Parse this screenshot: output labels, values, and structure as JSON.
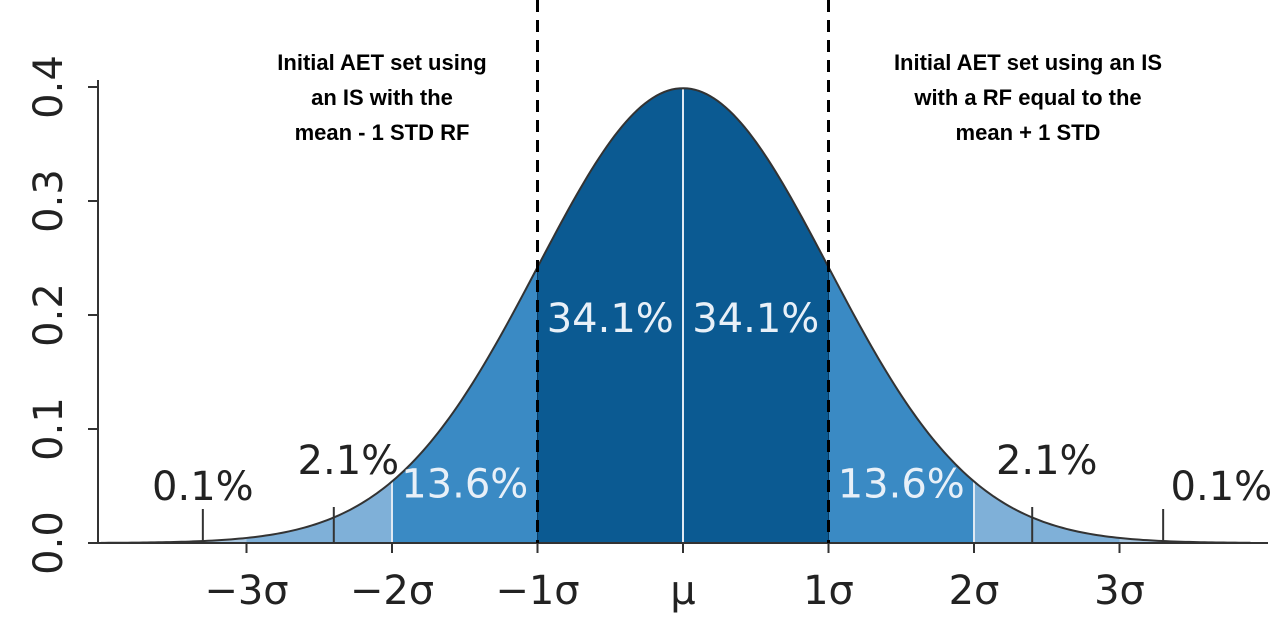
{
  "chart_data": {
    "type": "area",
    "title": "",
    "xlabel": "",
    "ylabel": "",
    "xlim": [
      -4.0,
      3.9
    ],
    "ylim": [
      0.0,
      0.4
    ],
    "grid": false,
    "x_ticks": [
      {
        "value": -3,
        "label": "−3σ"
      },
      {
        "value": -2,
        "label": "−2σ"
      },
      {
        "value": -1,
        "label": "−1σ"
      },
      {
        "value": 0,
        "label": "μ"
      },
      {
        "value": 1,
        "label": "1σ"
      },
      {
        "value": 2,
        "label": "2σ"
      },
      {
        "value": 3,
        "label": "3σ"
      }
    ],
    "y_ticks": [
      {
        "value": 0.0,
        "label": "0.0"
      },
      {
        "value": 0.1,
        "label": "0.1"
      },
      {
        "value": 0.2,
        "label": "0.2"
      },
      {
        "value": 0.3,
        "label": "0.3"
      },
      {
        "value": 0.4,
        "label": "0.4"
      }
    ],
    "curve": "normal_pdf",
    "bands": [
      {
        "from": -4.0,
        "to": -3,
        "percent": "0.1%",
        "color": "#a9c8e2"
      },
      {
        "from": -3,
        "to": -2,
        "percent": "2.1%",
        "color": "#7fb0d8"
      },
      {
        "from": -2,
        "to": -1,
        "percent": "13.6%",
        "color": "#3a8ac4"
      },
      {
        "from": -1,
        "to": 0,
        "percent": "34.1%",
        "color": "#0b5a92"
      },
      {
        "from": 0,
        "to": 1,
        "percent": "34.1%",
        "color": "#0b5a92"
      },
      {
        "from": 1,
        "to": 2,
        "percent": "13.6%",
        "color": "#3a8ac4"
      },
      {
        "from": 2,
        "to": 3,
        "percent": "2.1%",
        "color": "#7fb0d8"
      },
      {
        "from": 3,
        "to": 3.9,
        "percent": "0.1%",
        "color": "#a9c8e2"
      }
    ],
    "outer_labels": [
      {
        "text": "0.1%",
        "pointer_x": -3.3
      },
      {
        "text": "2.1%",
        "pointer_x": -2.4
      },
      {
        "text": "2.1%",
        "pointer_x": 2.4
      },
      {
        "text": "0.1%",
        "pointer_x": 3.3
      }
    ],
    "vlines": [
      {
        "x": -1,
        "style": "dashed",
        "color": "#000000"
      },
      {
        "x": 1,
        "style": "dashed",
        "color": "#000000"
      }
    ],
    "annotations": {
      "left": [
        "Initial AET set using",
        "an IS with the",
        "mean - 1 STD RF"
      ],
      "right": [
        "Initial AET set using an IS",
        "with a RF equal to the",
        "mean + 1 STD"
      ]
    }
  }
}
